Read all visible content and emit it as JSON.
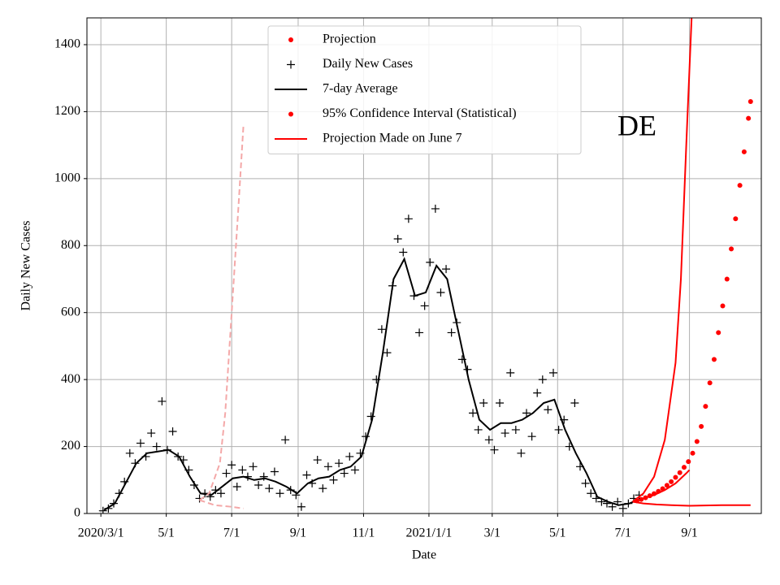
{
  "chart_data": {
    "type": "timeseries",
    "annotation": "DE",
    "x_label": "Date",
    "y_label": "Daily New Cases",
    "xlim": [
      "2020-02-17",
      "2021-11-07"
    ],
    "xticks": [
      {
        "value": "2020-03-01",
        "label": "2020/3/1"
      },
      {
        "value": "2020-05-01",
        "label": "5/1"
      },
      {
        "value": "2020-07-01",
        "label": "7/1"
      },
      {
        "value": "2020-09-01",
        "label": "9/1"
      },
      {
        "value": "2020-11-01",
        "label": "11/1"
      },
      {
        "value": "2021-01-01",
        "label": "2021/1/1"
      },
      {
        "value": "2021-03-01",
        "label": "3/1"
      },
      {
        "value": "2021-05-01",
        "label": "5/1"
      },
      {
        "value": "2021-07-01",
        "label": "7/1"
      },
      {
        "value": "2021-09-01",
        "label": "9/1"
      }
    ],
    "ylim": [
      0,
      1480
    ],
    "yticks": [
      0,
      200,
      400,
      600,
      800,
      1000,
      1200,
      1400
    ],
    "grid": true,
    "legend": "upper center",
    "series": [
      {
        "name": "Projection",
        "color": "#ff0000",
        "style": "dots",
        "x": [
          "2021-07-14",
          "2021-07-18",
          "2021-07-22",
          "2021-07-26",
          "2021-07-30",
          "2021-08-03",
          "2021-08-07",
          "2021-08-11",
          "2021-08-15",
          "2021-08-19",
          "2021-08-23",
          "2021-08-27",
          "2021-08-31",
          "2021-09-04",
          "2021-09-08",
          "2021-09-12",
          "2021-09-16",
          "2021-09-20",
          "2021-09-24",
          "2021-09-28",
          "2021-10-02",
          "2021-10-06",
          "2021-10-10",
          "2021-10-14",
          "2021-10-18",
          "2021-10-22",
          "2021-10-26",
          "2021-10-28"
        ],
        "values": [
          38,
          42,
          47,
          53,
          59,
          66,
          74,
          84,
          95,
          108,
          122,
          138,
          155,
          180,
          215,
          260,
          320,
          390,
          460,
          540,
          620,
          700,
          790,
          880,
          980,
          1080,
          1180,
          1230
        ]
      },
      {
        "name": "Daily New Cases",
        "color": "#000000",
        "style": "plus",
        "x": [
          "2020-03-03",
          "2020-03-08",
          "2020-03-13",
          "2020-03-18",
          "2020-03-23",
          "2020-03-28",
          "2020-04-02",
          "2020-04-07",
          "2020-04-12",
          "2020-04-17",
          "2020-04-22",
          "2020-04-27",
          "2020-05-02",
          "2020-05-07",
          "2020-05-12",
          "2020-05-17",
          "2020-05-22",
          "2020-05-27",
          "2020-06-01",
          "2020-06-06",
          "2020-06-11",
          "2020-06-16",
          "2020-06-21",
          "2020-06-26",
          "2020-07-01",
          "2020-07-06",
          "2020-07-11",
          "2020-07-16",
          "2020-07-21",
          "2020-07-26",
          "2020-07-31",
          "2020-08-05",
          "2020-08-10",
          "2020-08-15",
          "2020-08-20",
          "2020-08-25",
          "2020-08-30",
          "2020-09-04",
          "2020-09-09",
          "2020-09-14",
          "2020-09-19",
          "2020-09-24",
          "2020-09-29",
          "2020-10-04",
          "2020-10-09",
          "2020-10-14",
          "2020-10-19",
          "2020-10-24",
          "2020-10-29",
          "2020-11-03",
          "2020-11-08",
          "2020-11-13",
          "2020-11-18",
          "2020-11-23",
          "2020-11-28",
          "2020-12-03",
          "2020-12-08",
          "2020-12-13",
          "2020-12-18",
          "2020-12-23",
          "2020-12-28",
          "2021-01-02",
          "2021-01-07",
          "2021-01-12",
          "2021-01-17",
          "2021-01-22",
          "2021-01-27",
          "2021-02-01",
          "2021-02-06",
          "2021-02-11",
          "2021-02-16",
          "2021-02-21",
          "2021-02-26",
          "2021-03-03",
          "2021-03-08",
          "2021-03-13",
          "2021-03-18",
          "2021-03-23",
          "2021-03-28",
          "2021-04-02",
          "2021-04-07",
          "2021-04-12",
          "2021-04-17",
          "2021-04-22",
          "2021-04-27",
          "2021-05-02",
          "2021-05-07",
          "2021-05-12",
          "2021-05-17",
          "2021-05-22",
          "2021-05-27",
          "2021-06-01",
          "2021-06-06",
          "2021-06-11",
          "2021-06-16",
          "2021-06-21",
          "2021-06-26",
          "2021-07-01",
          "2021-07-06",
          "2021-07-11",
          "2021-07-16"
        ],
        "values": [
          8,
          15,
          30,
          60,
          95,
          180,
          150,
          210,
          170,
          240,
          200,
          335,
          190,
          245,
          170,
          160,
          130,
          85,
          45,
          60,
          50,
          70,
          60,
          120,
          145,
          80,
          130,
          110,
          140,
          85,
          110,
          75,
          125,
          60,
          220,
          70,
          55,
          20,
          115,
          90,
          160,
          75,
          140,
          100,
          150,
          120,
          170,
          130,
          180,
          230,
          290,
          400,
          550,
          480,
          680,
          820,
          780,
          880,
          650,
          540,
          620,
          750,
          910,
          660,
          730,
          540,
          570,
          460,
          430,
          300,
          250,
          330,
          220,
          190,
          330,
          240,
          420,
          250,
          180,
          300,
          230,
          360,
          400,
          310,
          420,
          250,
          280,
          200,
          330,
          140,
          90,
          60,
          45,
          35,
          30,
          20,
          35,
          15,
          30,
          45,
          55
        ]
      },
      {
        "name": "7-day Average",
        "color": "#000000",
        "style": "line",
        "x": [
          "2020-03-04",
          "2020-03-14",
          "2020-03-24",
          "2020-04-03",
          "2020-04-13",
          "2020-04-23",
          "2020-05-03",
          "2020-05-13",
          "2020-05-23",
          "2020-06-02",
          "2020-06-12",
          "2020-06-22",
          "2020-07-02",
          "2020-07-12",
          "2020-07-22",
          "2020-08-01",
          "2020-08-11",
          "2020-08-21",
          "2020-08-31",
          "2020-09-10",
          "2020-09-20",
          "2020-09-30",
          "2020-10-10",
          "2020-10-20",
          "2020-10-30",
          "2020-11-09",
          "2020-11-19",
          "2020-11-29",
          "2020-12-09",
          "2020-12-19",
          "2020-12-29",
          "2021-01-08",
          "2021-01-18",
          "2021-01-28",
          "2021-02-07",
          "2021-02-17",
          "2021-02-27",
          "2021-03-09",
          "2021-03-19",
          "2021-03-29",
          "2021-04-08",
          "2021-04-18",
          "2021-04-28",
          "2021-05-08",
          "2021-05-18",
          "2021-05-28",
          "2021-06-07",
          "2021-06-17",
          "2021-06-27",
          "2021-07-07",
          "2021-07-14"
        ],
        "values": [
          10,
          30,
          90,
          150,
          180,
          185,
          190,
          170,
          110,
          60,
          55,
          80,
          105,
          110,
          100,
          105,
          95,
          80,
          60,
          90,
          105,
          110,
          130,
          140,
          170,
          280,
          480,
          700,
          760,
          650,
          660,
          740,
          700,
          550,
          400,
          280,
          250,
          270,
          270,
          280,
          300,
          330,
          340,
          250,
          180,
          120,
          50,
          35,
          25,
          30,
          40
        ]
      },
      {
        "name": "95% Confidence Interval (Statistical)",
        "color": "#ff0000",
        "style": "line",
        "legend_marker": "dot",
        "x": [
          "2021-07-10",
          "2021-07-20",
          "2021-07-30",
          "2021-08-09",
          "2021-08-19",
          "2021-08-24",
          "2021-08-29",
          "2021-09-03"
        ],
        "values": [
          35,
          60,
          110,
          220,
          450,
          700,
          1100,
          1480
        ]
      },
      {
        "color": "#ff0000",
        "style": "line",
        "x": [
          "2021-07-10",
          "2021-07-20",
          "2021-08-01",
          "2021-08-15",
          "2021-09-01",
          "2021-09-15",
          "2021-10-01",
          "2021-10-28"
        ],
        "values": [
          35,
          30,
          27,
          25,
          23,
          24,
          25,
          25
        ]
      },
      {
        "name": "Projection Made on June 7",
        "color": "#ff0000",
        "style": "line",
        "x": [
          "2021-07-10",
          "2021-07-20",
          "2021-07-30",
          "2021-08-09",
          "2021-08-19",
          "2021-08-29",
          "2021-09-01"
        ],
        "values": [
          35,
          45,
          55,
          70,
          90,
          120,
          130
        ]
      },
      {
        "color": "#f4a8a8",
        "style": "line",
        "dash": true,
        "x": [
          "2020-06-01",
          "2020-06-10",
          "2020-06-20",
          "2020-06-25",
          "2020-07-01",
          "2020-07-07",
          "2020-07-12"
        ],
        "values": [
          40,
          60,
          150,
          300,
          600,
          900,
          1160
        ]
      },
      {
        "color": "#f4a8a8",
        "style": "line",
        "dash": true,
        "x": [
          "2020-06-01",
          "2020-06-15",
          "2020-07-01",
          "2020-07-12"
        ],
        "values": [
          40,
          25,
          20,
          15
        ]
      }
    ]
  }
}
